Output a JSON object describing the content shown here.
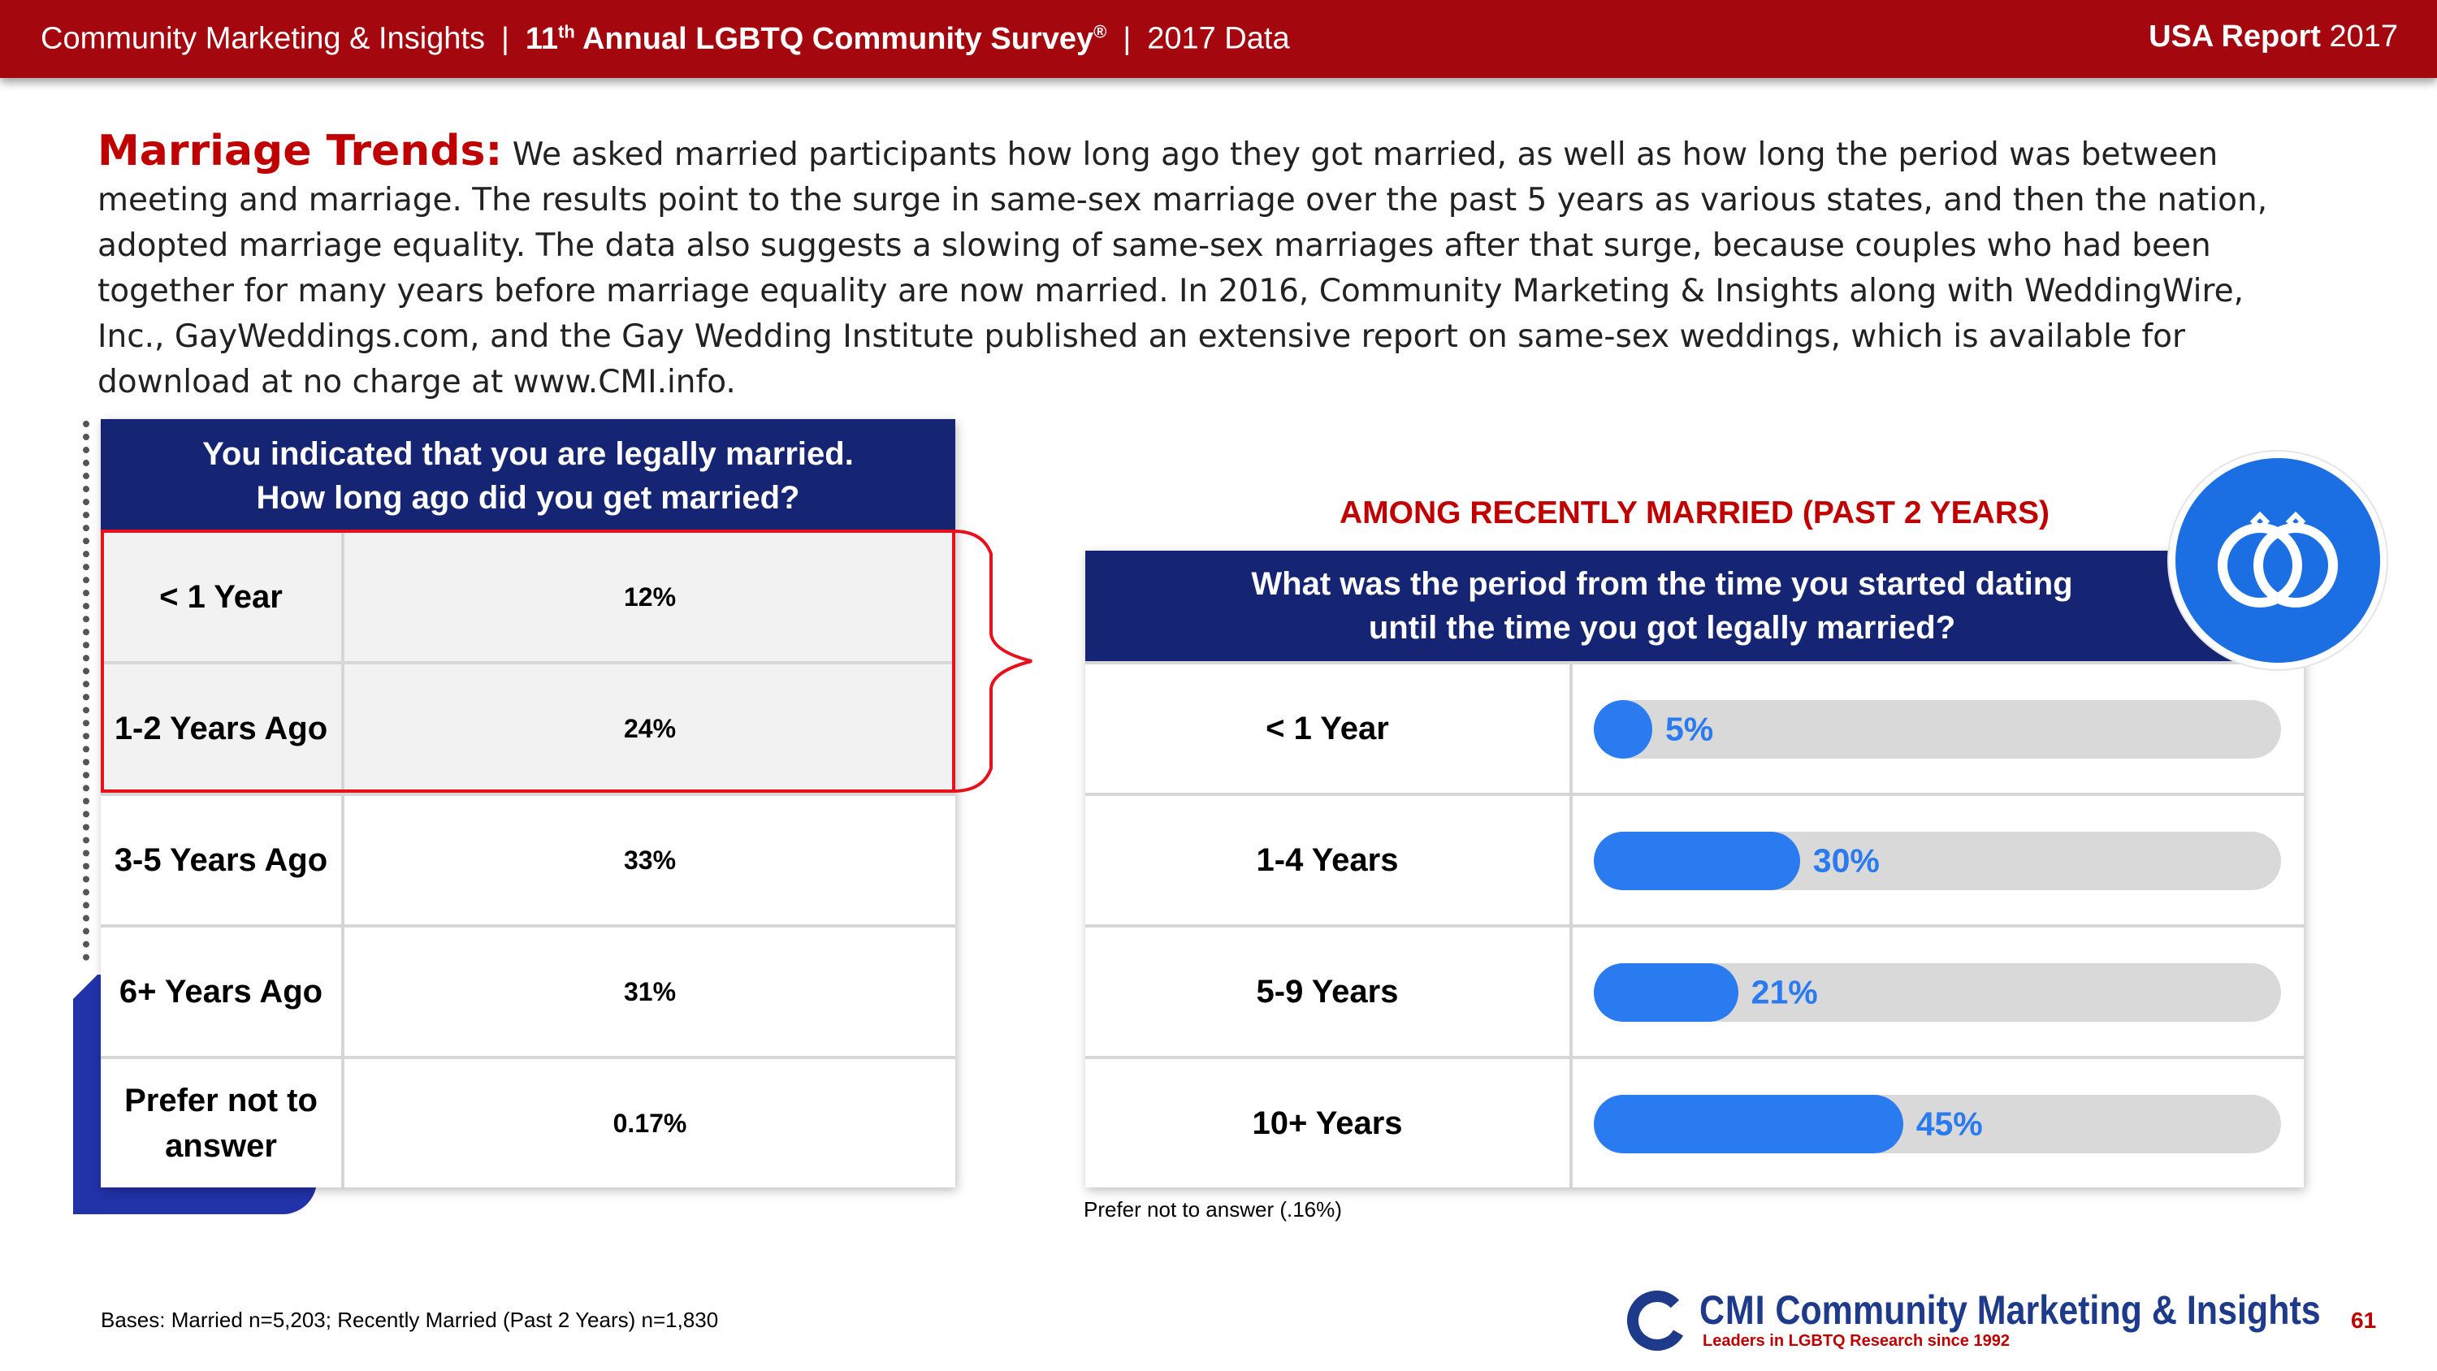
{
  "header": {
    "org": "Community Marketing & Insights",
    "survey_prefix": "11",
    "survey_sup": "th",
    "survey_rest": " Annual LGBTQ Community Survey",
    "survey_reg": "®",
    "year_data": "2017 Data",
    "report_bold": "USA Report",
    "report_year": "2017"
  },
  "intro": {
    "lead": "Marriage Trends:",
    "body": "We asked married participants how long ago they got married, as well as how long the period was between meeting and marriage. The results point to the surge in same-sex marriage over the past 5 years as various states, and then the nation, adopted marriage equality. The data also suggests a slowing of same-sex marriages after that surge, because couples who had been together for many years before marriage equality are now married. In 2016, Community Marketing & Insights along with WeddingWire, Inc., GayWeddings.com, and the Gay Wedding Institute published an extensive report on same-sex weddings, which is available for download at no charge at www.CMI.info."
  },
  "left_table": {
    "question_line1": "You indicated that you are legally married.",
    "question_line2": "How long ago did you get married?",
    "rows": [
      {
        "label": "< 1 Year",
        "value": "12%"
      },
      {
        "label": "1-2 Years Ago",
        "value": "24%"
      },
      {
        "label": "3-5 Years Ago",
        "value": "33%"
      },
      {
        "label": "6+ Years Ago",
        "value": "31%"
      },
      {
        "label": "Prefer not to answer",
        "value": "0.17%"
      }
    ]
  },
  "right_section": {
    "label": "AMONG RECENTLY MARRIED (PAST 2 YEARS)",
    "question_line1": "What was the period from the time you started dating",
    "question_line2": "until the time you got legally married?",
    "footnote": "Prefer not to answer (.16%)",
    "ring_icon": "wedding-rings-icon"
  },
  "chart_data": {
    "type": "bar",
    "orientation": "horizontal",
    "title": "What was the period from the time you started dating until the time you got legally married?",
    "subtitle": "AMONG RECENTLY MARRIED (PAST 2 YEARS)",
    "categories": [
      "< 1 Year",
      "1-4 Years",
      "5-9 Years",
      "10+ Years"
    ],
    "values": [
      5,
      30,
      21,
      45
    ],
    "labels": [
      "5%",
      "30%",
      "21%",
      "45%"
    ],
    "xlim": [
      0,
      100
    ],
    "xlabel": "",
    "ylabel": ""
  },
  "footer": {
    "bases": "Bases: Married n=5,203; Recently Married (Past 2 Years) n=1,830",
    "logo_cmi": "CMI",
    "logo_name": "Community Marketing & Insights",
    "logo_tagline": "Leaders in LGBTQ Research since 1992",
    "page_number": "61"
  },
  "colors": {
    "header_red": "#a5070e",
    "navy": "#152573",
    "accent_red": "#c00000",
    "bar_blue": "#2a7af0",
    "track_grey": "#d9d9d9"
  }
}
